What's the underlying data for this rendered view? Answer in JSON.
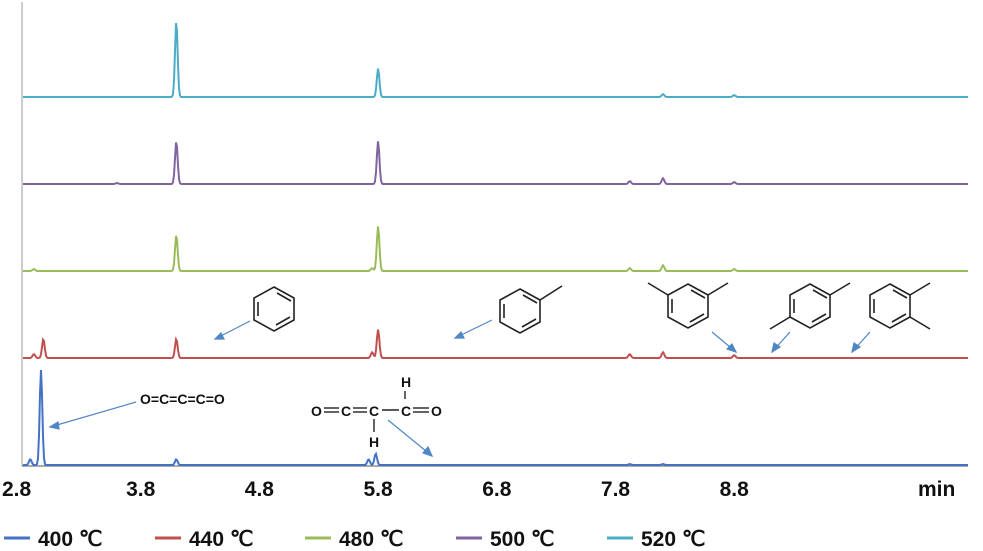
{
  "chart_data": {
    "type": "line",
    "x_unit": "min",
    "xlim": [
      2.8,
      9.8
    ],
    "x_ticks": [
      "2.8",
      "3.8",
      "4.8",
      "5.8",
      "6.8",
      "7.8",
      "8.8"
    ],
    "grid": false,
    "legend_position": "bottom",
    "series": [
      {
        "name": "400 ℃",
        "color": "#4472c4",
        "peaks": [
          [
            2.87,
            0.06
          ],
          [
            2.96,
            1.0
          ],
          [
            4.1,
            0.06
          ],
          [
            5.72,
            0.06
          ],
          [
            5.78,
            0.12
          ],
          [
            7.92,
            0.01
          ],
          [
            8.2,
            0.01
          ]
        ]
      },
      {
        "name": "440 ℃",
        "color": "#c0504d",
        "peaks": [
          [
            2.9,
            0.04
          ],
          [
            2.98,
            0.2
          ],
          [
            4.1,
            0.2
          ],
          [
            5.75,
            0.06
          ],
          [
            5.8,
            0.3
          ],
          [
            7.92,
            0.04
          ],
          [
            8.2,
            0.06
          ],
          [
            8.8,
            0.03
          ]
        ]
      },
      {
        "name": "480 ℃",
        "color": "#9bbb59",
        "peaks": [
          [
            2.9,
            0.02
          ],
          [
            4.1,
            0.38
          ],
          [
            5.75,
            0.03
          ],
          [
            5.8,
            0.47
          ],
          [
            7.92,
            0.03
          ],
          [
            8.2,
            0.06
          ],
          [
            8.8,
            0.02
          ]
        ]
      },
      {
        "name": "500 ℃",
        "color": "#8064a2",
        "peaks": [
          [
            3.6,
            0.01
          ],
          [
            4.1,
            0.45
          ],
          [
            5.8,
            0.45
          ],
          [
            7.92,
            0.03
          ],
          [
            8.2,
            0.06
          ],
          [
            8.8,
            0.02
          ]
        ]
      },
      {
        "name": "520 ℃",
        "color": "#4bacc6",
        "peaks": [
          [
            4.1,
            0.8
          ],
          [
            5.8,
            0.3
          ],
          [
            8.2,
            0.03
          ],
          [
            8.8,
            0.02
          ]
        ]
      }
    ],
    "annotations": {
      "c3o2": "O=C=C=C=O",
      "ketene_o1": "O",
      "ketene_c1": "C",
      "ketene_c2": "C",
      "ketene_c3": "C",
      "ketene_o2": "O",
      "ketene_h1": "H",
      "ketene_h2": "H"
    }
  },
  "legend_labels": [
    "400 ℃",
    "440 ℃",
    "480 ℃",
    "500 ℃",
    "520 ℃"
  ]
}
